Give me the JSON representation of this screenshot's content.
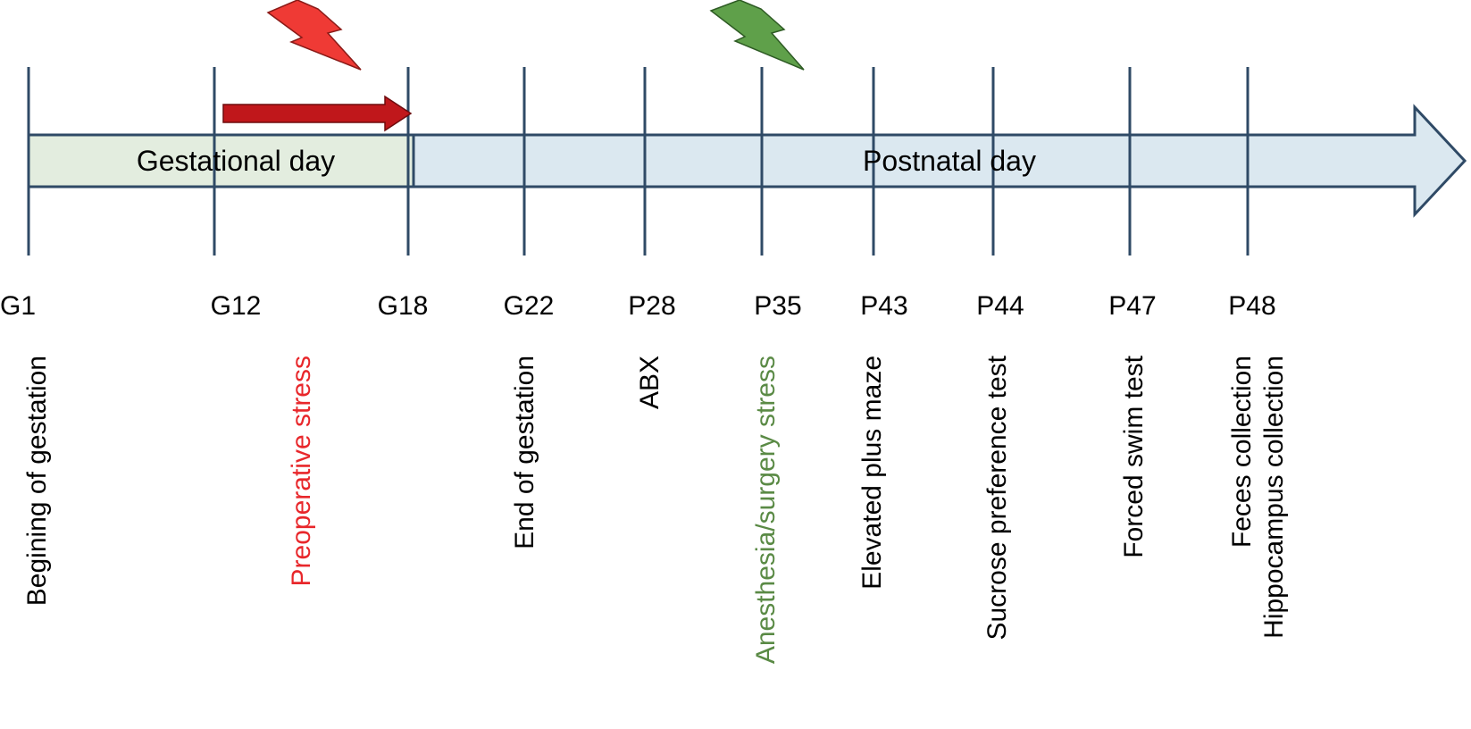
{
  "colors": {
    "axis_line": "#2f4a66",
    "gestational_fill": "#e3eddf",
    "postnatal_fill": "#dbe8f0",
    "arrow_outline": "#2f4a66",
    "preop_arrow": "#c0171b",
    "preop_text": "#e8272b",
    "surgery_text": "#5a8a45",
    "bolt_red": "#ef3a35",
    "bolt_green": "#5fa04a",
    "text": "#000000"
  },
  "timeline": {
    "gestational_label": "Gestational day",
    "postnatal_label": "Postnatal day",
    "ticks": [
      {
        "day": "G1",
        "event": "Begining of gestation",
        "tone": "default"
      },
      {
        "day": "G12",
        "event": "",
        "tone": "default"
      },
      {
        "day": "G18",
        "event": "",
        "tone": "default"
      },
      {
        "day": "G22",
        "event": "End of gestation",
        "tone": "default"
      },
      {
        "day": "P28",
        "event": "ABX",
        "tone": "default"
      },
      {
        "day": "P35",
        "event": "Anesthesia/surgery stress",
        "tone": "surgery"
      },
      {
        "day": "P43",
        "event": "Elevated plus maze",
        "tone": "default"
      },
      {
        "day": "P44",
        "event": "Sucrose preference test",
        "tone": "default"
      },
      {
        "day": "P47",
        "event": "Forced swim test",
        "tone": "default"
      },
      {
        "day": "P48",
        "event": "Feces collection",
        "tone": "default"
      }
    ],
    "extra_events": [
      {
        "event": "Preoperative stress",
        "tone": "preop"
      },
      {
        "event": "Hippocampus collection",
        "tone": "default"
      }
    ],
    "icons": [
      "lightning-bolt-icon-red",
      "lightning-bolt-icon-green",
      "arrow-right-icon"
    ]
  }
}
